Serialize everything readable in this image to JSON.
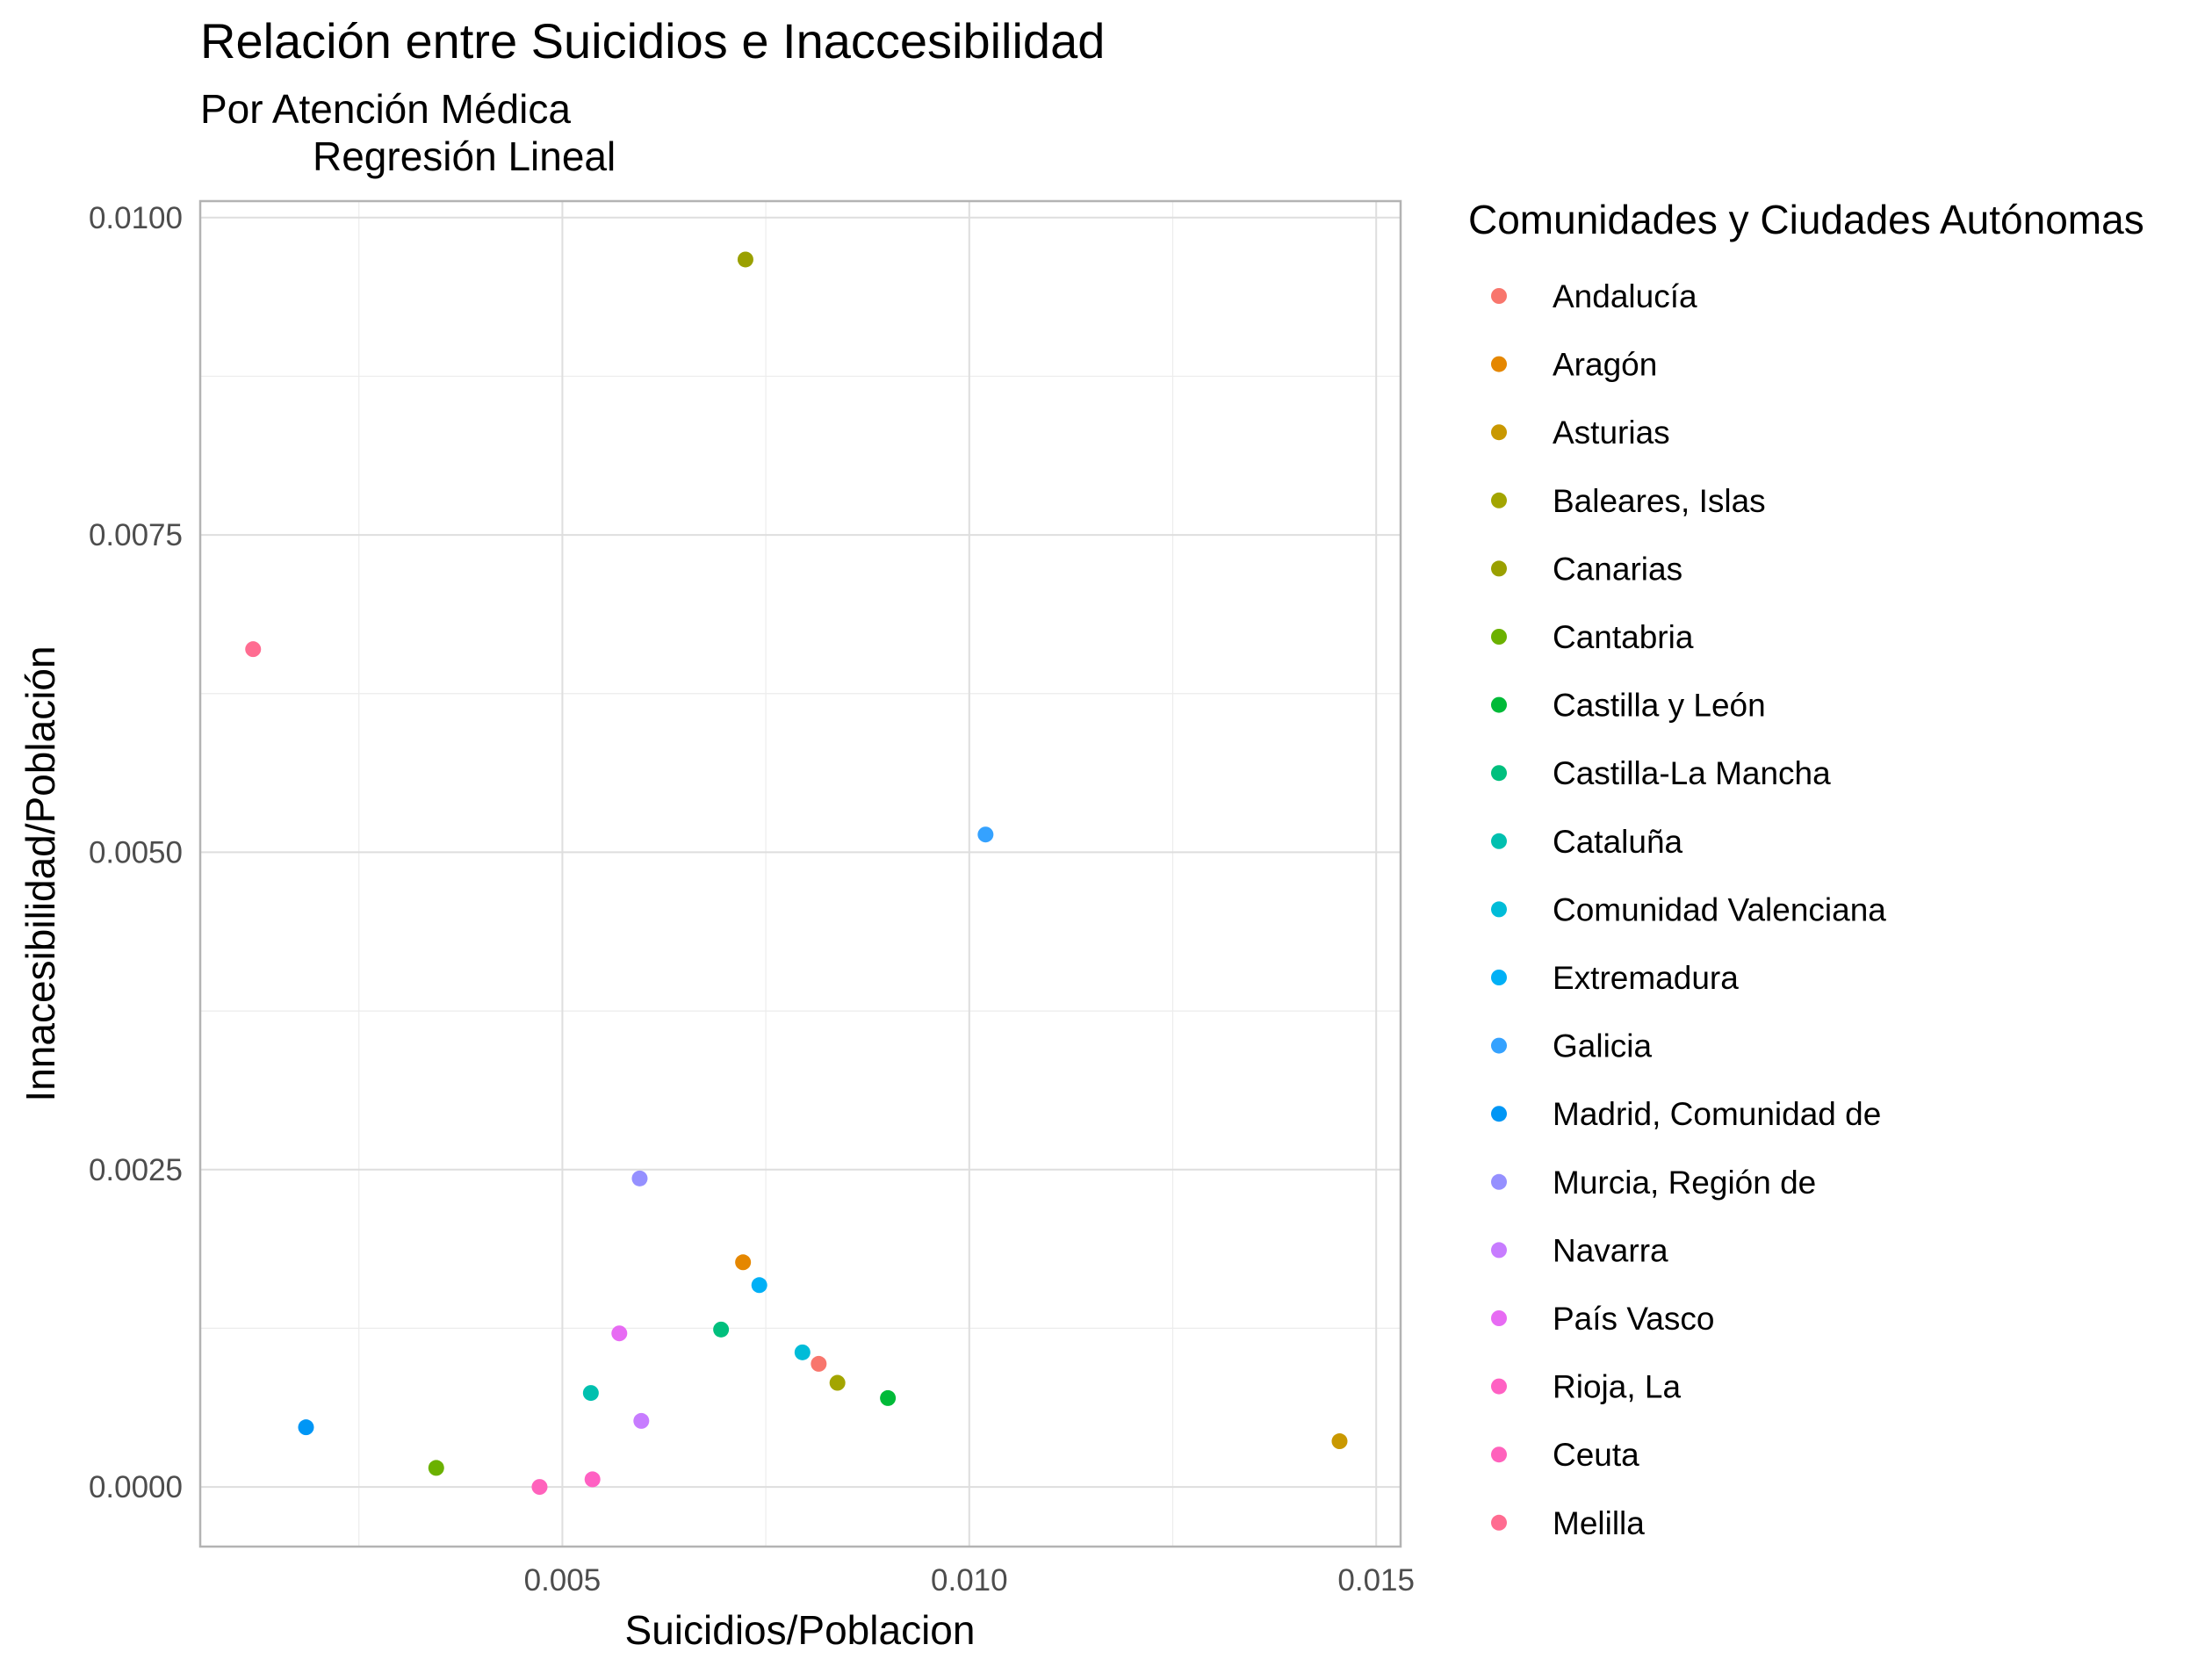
{
  "chart_data": {
    "type": "scatter",
    "title": "Relación entre Suicidios e Inaccesibilidad",
    "subtitle_line1": "Por Atención Médica",
    "subtitle_line2": "Regresión Lineal",
    "xlabel": "Suicidios/Poblacion",
    "ylabel": "Innacesibilidad/Población",
    "xlim": [
      0.00055,
      0.0153
    ],
    "ylim": [
      -0.00047,
      0.01013
    ],
    "x_ticks": [
      0.005,
      0.01,
      0.015
    ],
    "x_tick_labels": [
      "0.005",
      "0.010",
      "0.015"
    ],
    "x_minor_ticks": [
      0.0025,
      0.0075,
      0.0125
    ],
    "y_ticks": [
      0.0,
      0.0025,
      0.005,
      0.0075,
      0.01
    ],
    "y_tick_labels": [
      "0.0000",
      "0.0025",
      "0.0050",
      "0.0075",
      "0.0100"
    ],
    "y_minor_ticks": [
      0.00125,
      0.00375,
      0.00625,
      0.00875
    ],
    "legend_title": "Comunidades y Ciudades Autónomas",
    "legend_position": "right",
    "grid": true,
    "series": [
      {
        "name": "Andalucía",
        "color": "#F8766D",
        "x": 0.00815,
        "y": 0.00097
      },
      {
        "name": "Aragón",
        "color": "#E58700",
        "x": 0.00722,
        "y": 0.00177
      },
      {
        "name": "Asturias",
        "color": "#C99800",
        "x": 0.01455,
        "y": 0.00036
      },
      {
        "name": "Baleares, Islas",
        "color": "#A3A500",
        "x": 0.00838,
        "y": 0.00082
      },
      {
        "name": "Canarias",
        "color": "#9AA000",
        "x": 0.00725,
        "y": 0.00967
      },
      {
        "name": "Cantabria",
        "color": "#6BB100",
        "x": 0.00345,
        "y": 0.00015
      },
      {
        "name": "Castilla y León",
        "color": "#00BA38",
        "x": 0.009,
        "y": 0.0007
      },
      {
        "name": "Castilla-La Mancha",
        "color": "#00BF7D",
        "x": 0.00695,
        "y": 0.00124
      },
      {
        "name": "Cataluña",
        "color": "#00C0AF",
        "x": 0.00535,
        "y": 0.00074
      },
      {
        "name": "Comunidad Valenciana",
        "color": "#00BCD8",
        "x": 0.00795,
        "y": 0.00106
      },
      {
        "name": "Extremadura",
        "color": "#00B0F6",
        "x": 0.00742,
        "y": 0.00159
      },
      {
        "name": "Galicia",
        "color": "#35A2FF",
        "x": 0.0102,
        "y": 0.00514
      },
      {
        "name": "Madrid, Comunidad de",
        "color": "#0096F5",
        "x": 0.00185,
        "y": 0.00047
      },
      {
        "name": "Murcia, Región de",
        "color": "#9590FF",
        "x": 0.00595,
        "y": 0.00243
      },
      {
        "name": "Navarra",
        "color": "#C77CFF",
        "x": 0.00597,
        "y": 0.00052
      },
      {
        "name": "País Vasco",
        "color": "#E76BF3",
        "x": 0.0057,
        "y": 0.00121
      },
      {
        "name": "Rioja, La",
        "color": "#FF61C3",
        "x": 0.00537,
        "y": 6e-05
      },
      {
        "name": "Ceuta",
        "color": "#FF62BC",
        "x": 0.00472,
        "y": 0.0
      },
      {
        "name": "Melilla",
        "color": "#FF6C91",
        "x": 0.0012,
        "y": 0.0066
      }
    ]
  }
}
